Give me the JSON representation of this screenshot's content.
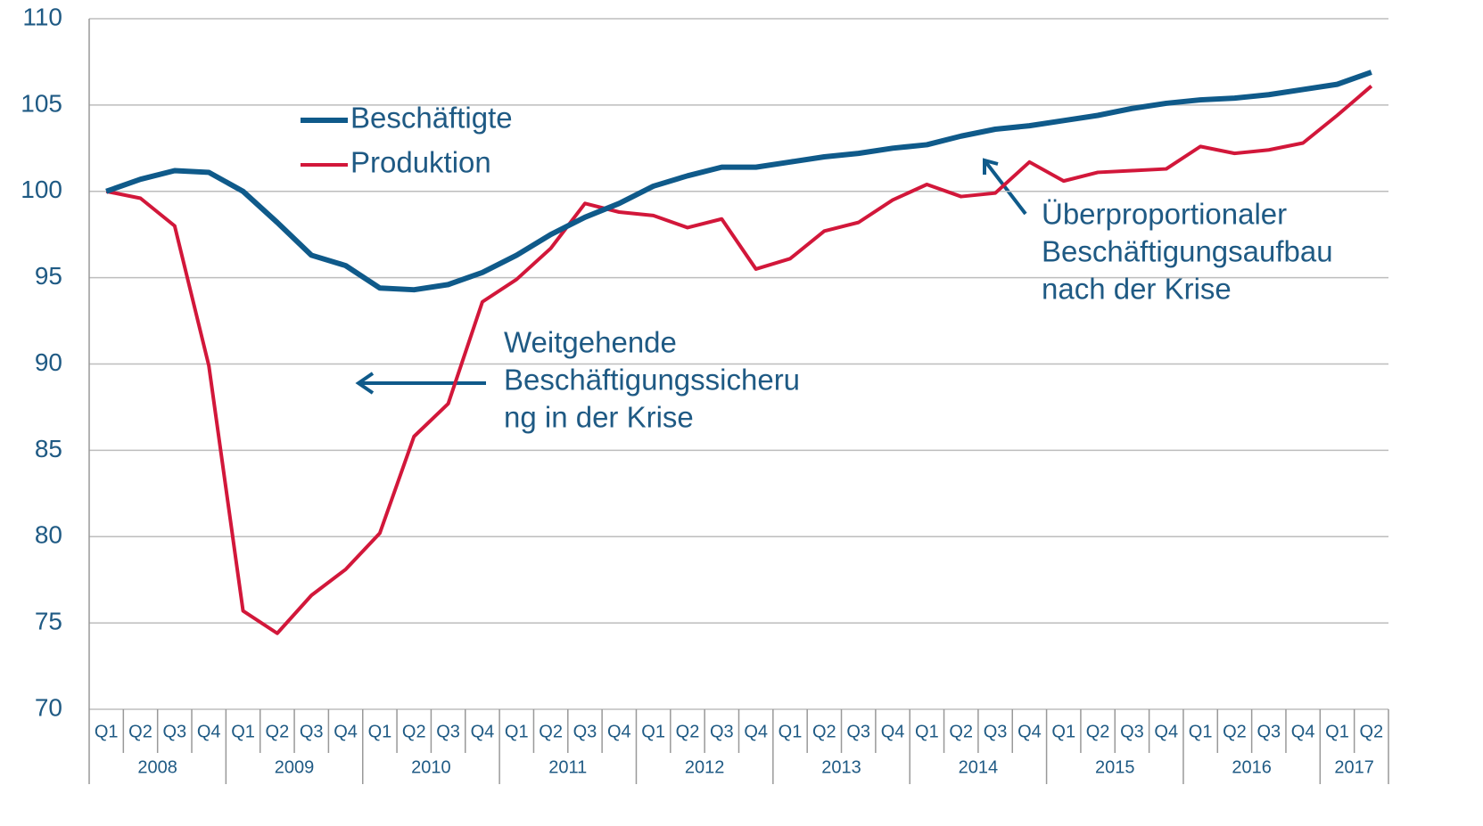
{
  "chart_data": {
    "type": "line",
    "categories": [
      "Q1",
      "Q2",
      "Q3",
      "Q4",
      "Q1",
      "Q2",
      "Q3",
      "Q4",
      "Q1",
      "Q2",
      "Q3",
      "Q4",
      "Q1",
      "Q2",
      "Q3",
      "Q4",
      "Q1",
      "Q2",
      "Q3",
      "Q4",
      "Q1",
      "Q2",
      "Q3",
      "Q4",
      "Q1",
      "Q2",
      "Q3",
      "Q4",
      "Q1",
      "Q2",
      "Q3",
      "Q4",
      "Q1",
      "Q2",
      "Q3",
      "Q4",
      "Q1",
      "Q2"
    ],
    "years": [
      "2008",
      "2009",
      "2010",
      "2011",
      "2012",
      "2013",
      "2014",
      "2015",
      "2016",
      "2017"
    ],
    "series": [
      {
        "name": "Beschäftigte",
        "color": "#0f5a8a",
        "values": [
          100,
          100.7,
          101.2,
          101.1,
          100.0,
          98.2,
          96.3,
          95.7,
          94.4,
          94.3,
          94.6,
          95.3,
          96.3,
          97.5,
          98.5,
          99.3,
          100.3,
          100.9,
          101.4,
          101.4,
          101.7,
          102.0,
          102.2,
          102.5,
          102.7,
          103.2,
          103.6,
          103.8,
          104.1,
          104.4,
          104.8,
          105.1,
          105.3,
          105.4,
          105.6,
          105.9,
          106.2,
          106.9
        ]
      },
      {
        "name": "Produktion",
        "color": "#d2173a",
        "values": [
          100,
          99.6,
          98.0,
          89.9,
          75.7,
          74.4,
          76.6,
          78.1,
          80.2,
          85.8,
          87.7,
          93.6,
          94.9,
          96.7,
          99.3,
          98.8,
          98.6,
          97.9,
          98.4,
          95.5,
          96.1,
          97.7,
          98.2,
          99.5,
          100.4,
          99.7,
          99.9,
          101.7,
          100.6,
          101.1,
          101.2,
          101.3,
          102.6,
          102.2,
          102.4,
          102.8,
          104.4,
          106.1
        ]
      }
    ],
    "annotations": [
      {
        "lines": [
          "Weitgehende",
          "Beschäftigungssicheru",
          "ng in der Krise"
        ]
      },
      {
        "lines": [
          "Überproportionaler",
          "Beschäftigungsaufbau",
          "nach der Krise"
        ]
      }
    ],
    "ylim": [
      70,
      110
    ],
    "yticks": [
      70,
      75,
      80,
      85,
      90,
      95,
      100,
      105,
      110
    ],
    "grid": true
  }
}
